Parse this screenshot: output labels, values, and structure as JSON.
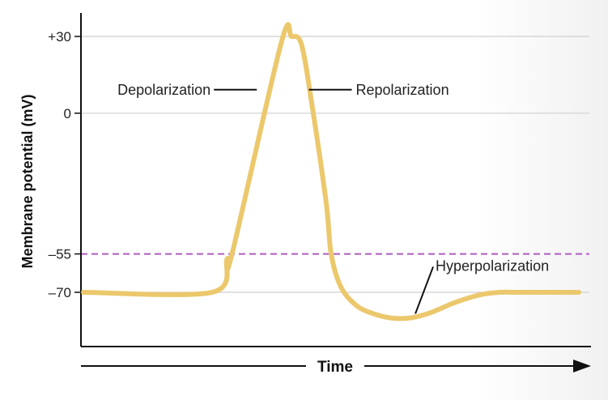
{
  "chart_data": {
    "type": "line",
    "title": "",
    "xlabel": "Time",
    "ylabel": "Membrane potential (mV)",
    "y_ticks": [
      {
        "value": 30,
        "label": "+30"
      },
      {
        "value": 0,
        "label": "0"
      },
      {
        "value": -55,
        "label": "–55"
      },
      {
        "value": -70,
        "label": "–70"
      }
    ],
    "ylim": [
      -80,
      38
    ],
    "xlim": [
      0,
      100
    ],
    "grid": true,
    "threshold": {
      "value": -55,
      "style": "dashed",
      "color": "#b05cc0"
    },
    "line_color": "#ecc86c",
    "series": [
      {
        "x": [
          0,
          26,
          29,
          30,
          40,
          42,
          44,
          46,
          49,
          50,
          52,
          55,
          58,
          62,
          66,
          70,
          75,
          80,
          84,
          88,
          100
        ],
        "y": [
          -70,
          -70,
          -57,
          -55,
          28,
          30,
          27,
          5,
          -35,
          -55,
          -68,
          -75,
          -78,
          -80,
          -80,
          -78,
          -74,
          -71,
          -70,
          -70,
          -70
        ]
      }
    ],
    "annotations": [
      {
        "label": "Depolarization",
        "x": 35,
        "y": 0,
        "side": "left"
      },
      {
        "label": "Repolarization",
        "x": 46,
        "y": 0,
        "side": "right"
      },
      {
        "label": "Hyperpolarization",
        "x": 67,
        "y": -79,
        "side": "right"
      }
    ]
  }
}
